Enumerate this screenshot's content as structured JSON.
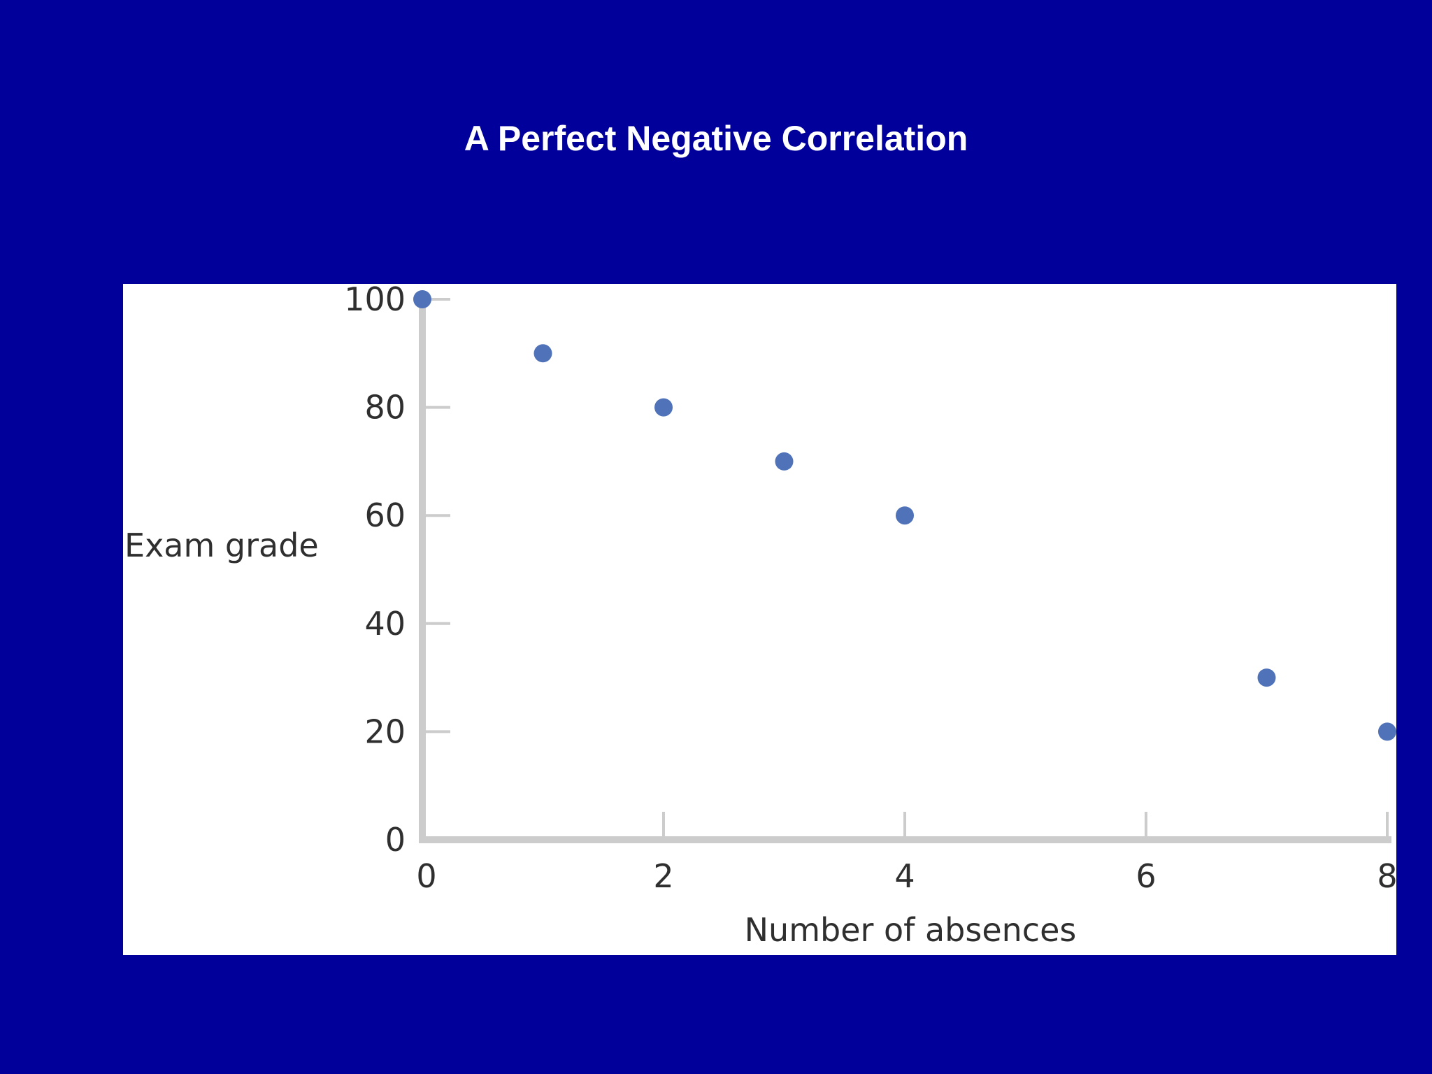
{
  "slide": {
    "title": "A Perfect Negative Correlation",
    "background_color": "#01009a",
    "title_color": "#ffffff"
  },
  "chart_data": {
    "type": "scatter",
    "title": "",
    "xlabel": "Number of absences",
    "ylabel": "Exam grade",
    "xlim": [
      0,
      8
    ],
    "ylim": [
      0,
      100
    ],
    "x_ticks": [
      0,
      2,
      4,
      6,
      8
    ],
    "x_tick_labels": [
      "0",
      "2",
      "4",
      "6",
      "8"
    ],
    "y_ticks": [
      0,
      20,
      40,
      60,
      80,
      100
    ],
    "y_tick_labels": [
      "0",
      "20",
      "40",
      "60",
      "80",
      "100"
    ],
    "grid": false,
    "legend": "none",
    "point_color": "#4f72b8",
    "axis_color": "#cccccc",
    "points": [
      {
        "x": 0,
        "y": 100
      },
      {
        "x": 1,
        "y": 90
      },
      {
        "x": 2,
        "y": 80
      },
      {
        "x": 3,
        "y": 70
      },
      {
        "x": 4,
        "y": 60
      },
      {
        "x": 7,
        "y": 30
      },
      {
        "x": 8,
        "y": 20
      }
    ]
  }
}
